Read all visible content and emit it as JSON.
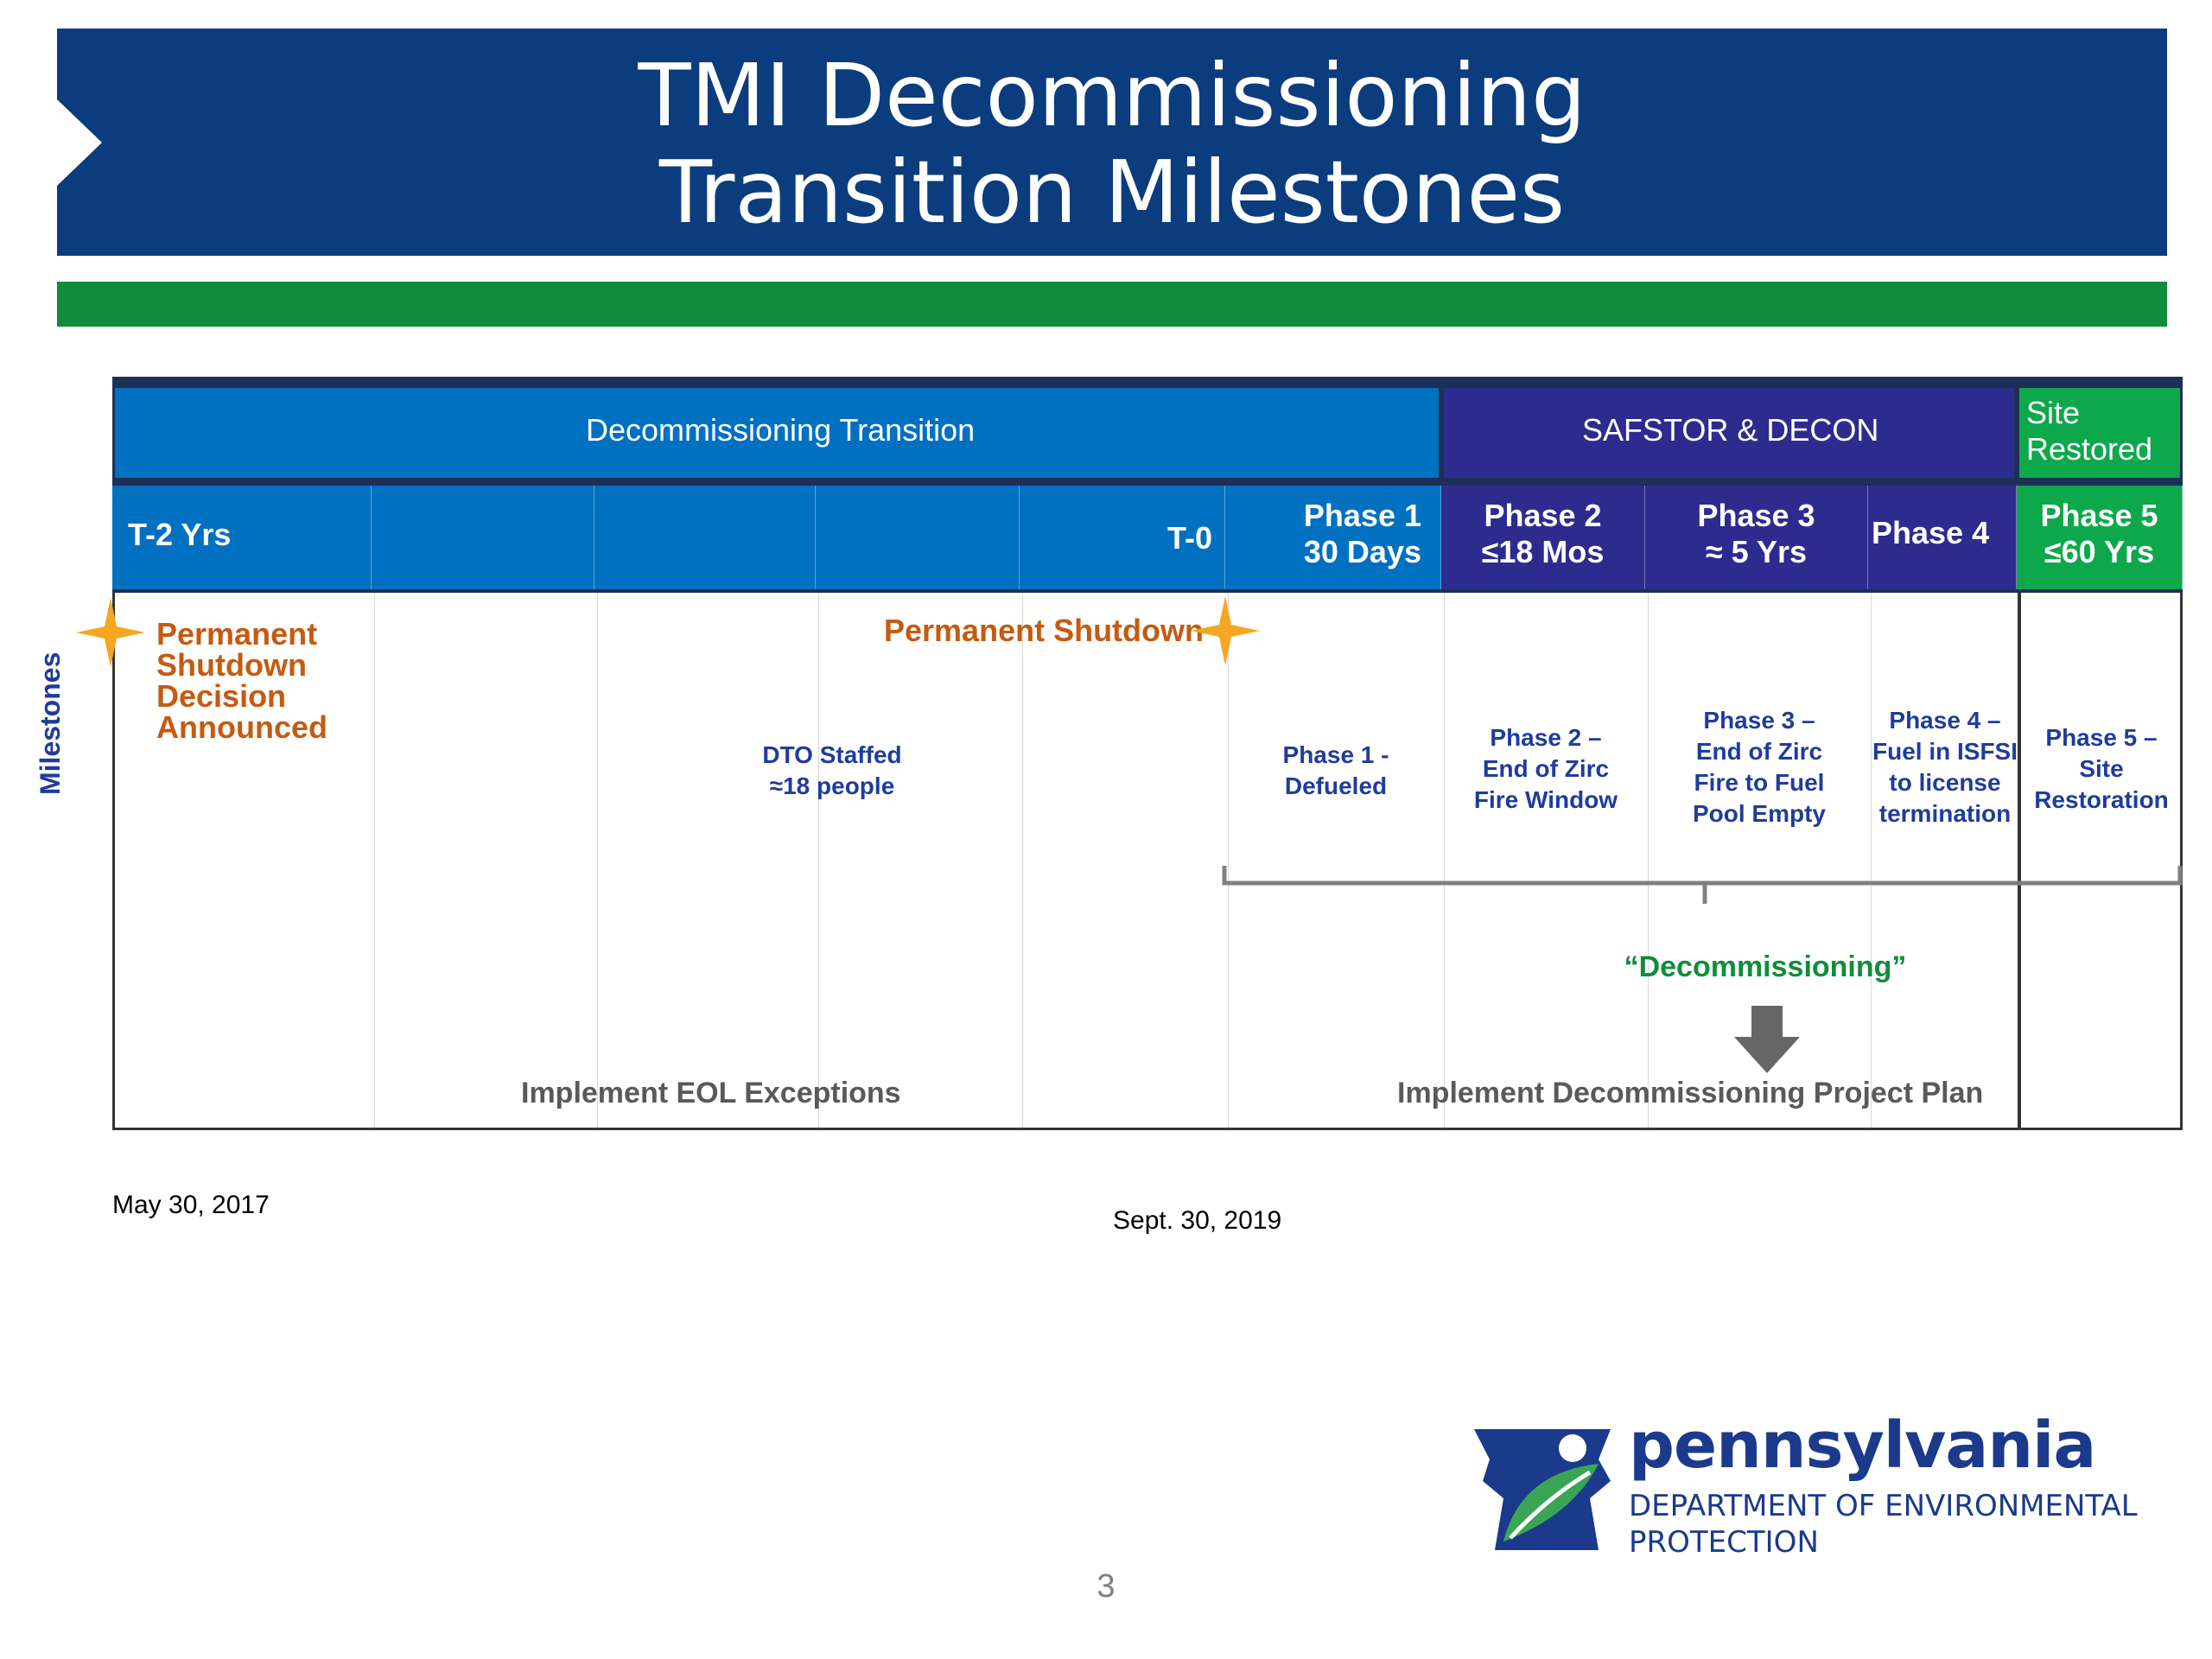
{
  "title": {
    "line1": "TMI Decommissioning",
    "line2": "Transition Milestones"
  },
  "bands": {
    "transition": "Decommissioning Transition",
    "safstor": "SAFSTOR & DECON",
    "site_line1": "Site",
    "site_line2": "Restored"
  },
  "phases": {
    "t2": "T-2 Yrs",
    "t0": "T-0",
    "p1_line1": "Phase 1",
    "p1_line2": "30 Days",
    "p2_line1": "Phase 2",
    "p2_line2": "≤18  Mos",
    "p3_line1": "Phase 3",
    "p3_line2": "≈ 5 Yrs",
    "p4": "Phase  4",
    "p5_line1": "Phase  5",
    "p5_line2": "≤60 Yrs"
  },
  "milestones_label": "Milestones",
  "events": {
    "decision": [
      "Permanent",
      "Shutdown",
      "Decision",
      "Announced"
    ],
    "shutdown": "Permanent Shutdown",
    "dto": [
      "DTO Staffed",
      "≈18 people"
    ],
    "p1": [
      "Phase 1 -",
      "Defueled"
    ],
    "p2": [
      "Phase 2 –",
      "End  of Zirc",
      "Fire Window"
    ],
    "p3": [
      "Phase 3 –",
      "End of Zirc",
      "Fire to Fuel",
      "Pool Empty"
    ],
    "p4": [
      "Phase 4 –",
      "Fuel in ISFSI",
      "to license",
      "termination"
    ],
    "p5": [
      "Phase 5 –",
      "Site",
      "Restoration"
    ]
  },
  "decommissioning_label": "“Decommissioning”",
  "eol_label": "Implement EOL Exceptions",
  "plan_label": "Implement Decommissioning Project Plan",
  "dates": {
    "left": "May 30, 2017",
    "middle": "Sept. 30, 2019"
  },
  "logo": {
    "word": "pennsylvania",
    "dept_line1": "DEPARTMENT OF ENVIRONMENTAL",
    "dept_line2": "PROTECTION"
  },
  "page_number": "3",
  "colors": {
    "banner": "#0b3c7d",
    "green_bar": "#108c3a",
    "transition_band": "#0070c0",
    "safstor_band": "#2e2b8f",
    "site_band": "#0da84b",
    "milestone_text": "#1f3c9c",
    "orange_text": "#c55a11",
    "star": "#f5a623"
  },
  "icons": [
    "star-icon",
    "down-arrow-icon",
    "brace-icon",
    "keystone-logo-icon"
  ]
}
